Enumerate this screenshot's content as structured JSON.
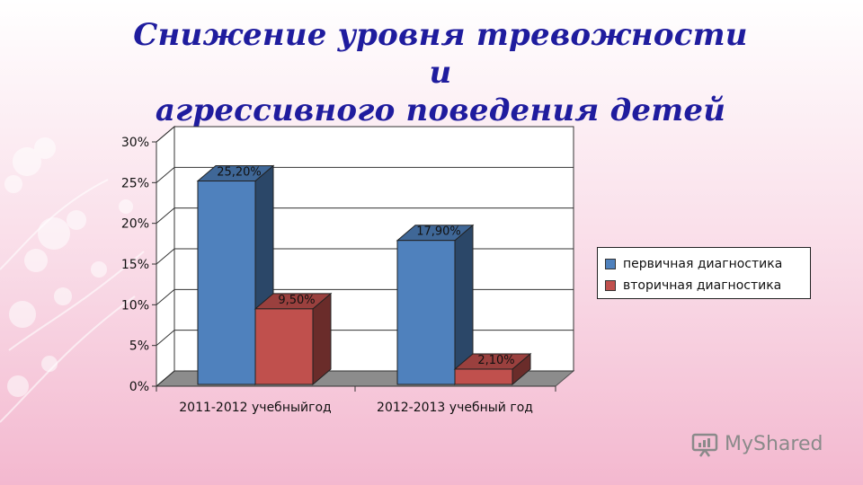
{
  "title": {
    "line1": "Снижение уровня тревожности и",
    "line2": "агрессивного поведения детей"
  },
  "chart_data": {
    "type": "bar",
    "categories": [
      "2011-2012 учебныйгод",
      "2012-2013 учебный год"
    ],
    "series": [
      {
        "name": "первичная диагностика",
        "values": [
          25.2,
          17.9
        ],
        "labels": [
          "25,20%",
          "17,90%"
        ],
        "color": "#4f81bd"
      },
      {
        "name": "вторичная диагностика",
        "values": [
          9.5,
          2.1
        ],
        "labels": [
          "9,50%",
          "2,10%"
        ],
        "color": "#c0504d"
      }
    ],
    "ylim": [
      0,
      30
    ],
    "yticks": [
      0,
      5,
      10,
      15,
      20,
      25,
      30
    ],
    "ytick_labels": [
      "0%",
      "5%",
      "10%",
      "15%",
      "20%",
      "25%",
      "30%"
    ],
    "grid": true,
    "style": "3d-clustered-column",
    "legend_position": "right"
  },
  "watermark": {
    "text": "MyShared",
    "icon": "presentation-icon"
  }
}
